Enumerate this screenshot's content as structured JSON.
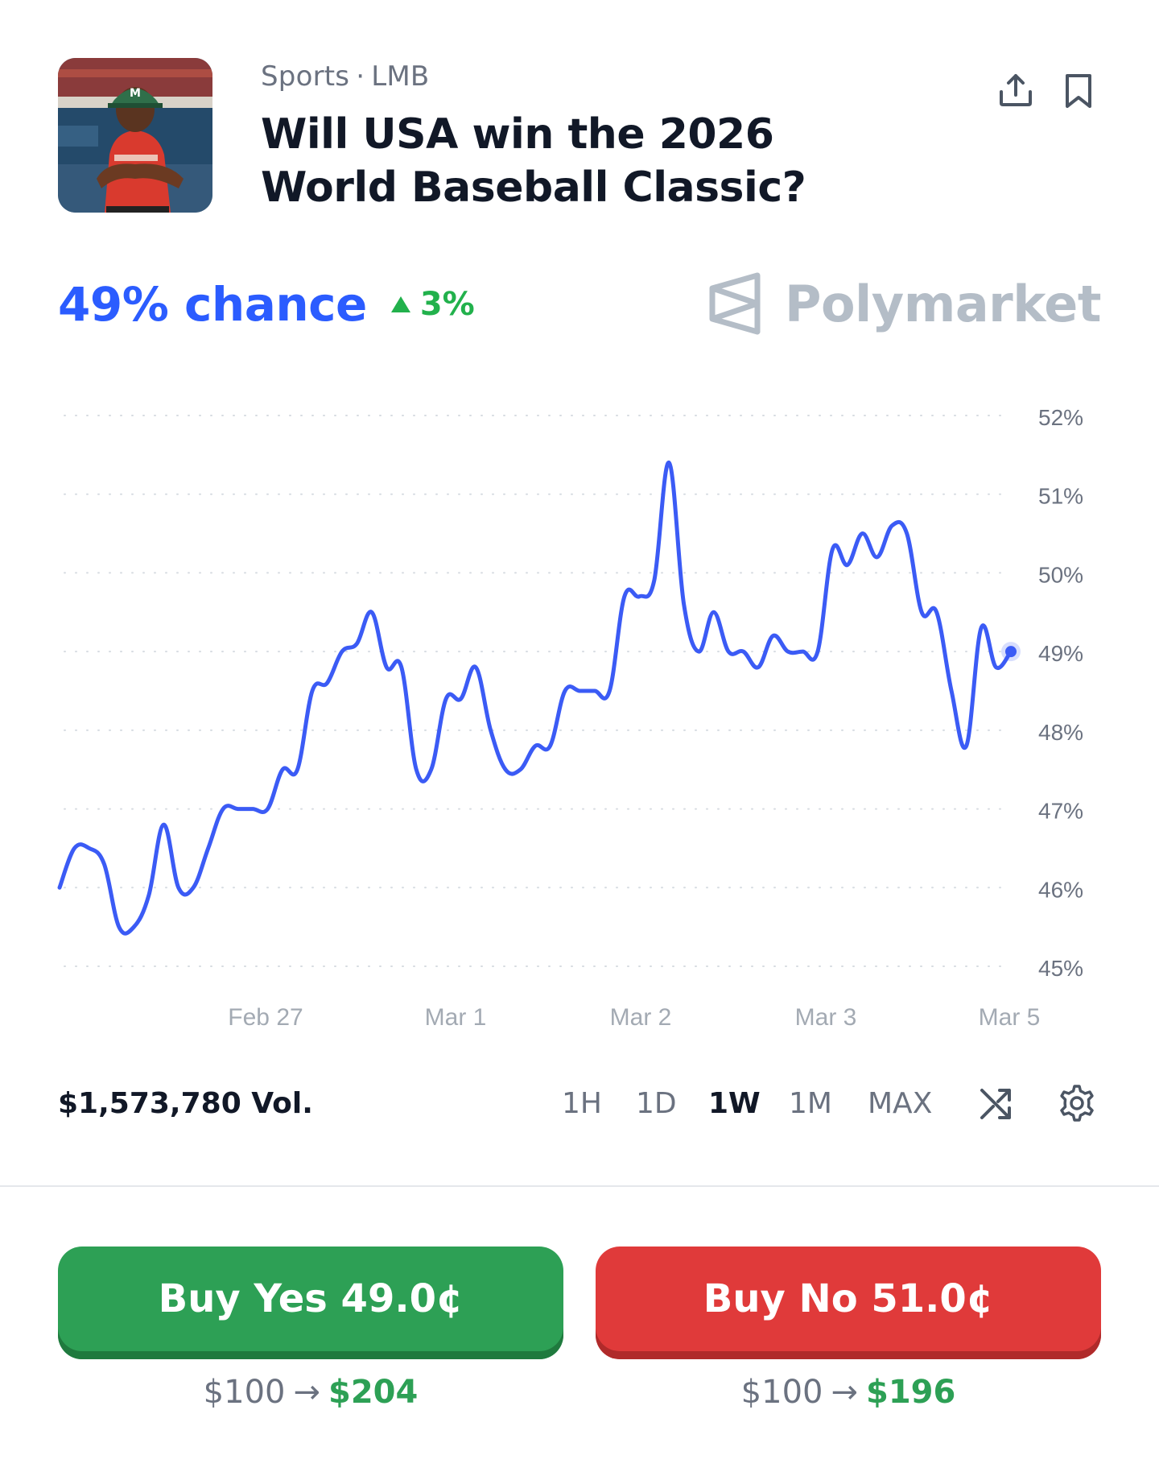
{
  "header": {
    "category": "Sports",
    "subcategory": "LMB",
    "title": "Will USA win the 2026 World Baseball Classic?",
    "thumbnail_icon": "baseball-player-photo",
    "share_icon": "share-icon",
    "bookmark_icon": "bookmark-icon"
  },
  "summary": {
    "chance": "49% chance",
    "change": "3%",
    "change_direction": "up",
    "brand": "Polymarket",
    "brand_icon": "polymarket-logo-icon"
  },
  "chart_data": {
    "type": "line",
    "title": "",
    "xlabel": "",
    "ylabel": "",
    "ylim": [
      45,
      52
    ],
    "y_ticks": [
      "52%",
      "51%",
      "50%",
      "49%",
      "48%",
      "47%",
      "46%",
      "45%"
    ],
    "x_ticks": [
      "Feb 27",
      "Mar 1",
      "Mar 2",
      "Mar 3",
      "Mar 5"
    ],
    "grid": "dotted-horizontal",
    "line_color": "#3b5bf5",
    "series": [
      {
        "values": [
          46.0,
          46.5,
          46.5,
          46.3,
          45.5,
          45.5,
          45.9,
          46.8,
          46.0,
          46.0,
          46.5,
          47.0,
          47.0,
          47.0,
          47.0,
          47.5,
          47.5,
          48.5,
          48.6,
          49.0,
          49.1,
          49.5,
          48.8,
          48.8,
          47.5,
          47.5,
          48.4,
          48.4,
          48.8,
          48.0,
          47.5,
          47.5,
          47.8,
          47.8,
          48.5,
          48.5,
          48.5,
          48.5,
          49.7,
          49.7,
          49.9,
          51.4,
          49.6,
          49.0,
          49.5,
          49.0,
          49.0,
          48.8,
          49.2,
          49.0,
          49.0,
          49.0,
          50.3,
          50.1,
          50.5,
          50.2,
          50.6,
          50.5,
          49.5,
          49.5,
          48.5,
          47.8,
          49.3,
          48.8,
          49.0
        ]
      }
    ]
  },
  "controls": {
    "volume": "$1,573,780 Vol.",
    "ranges": [
      "1H",
      "1D",
      "1W",
      "1M",
      "MAX"
    ],
    "active_range": "1W",
    "shuffle_icon": "shuffle-icon",
    "settings_icon": "gear-icon"
  },
  "actions": {
    "yes_label": "Buy Yes 49.0¢",
    "no_label": "Buy No 51.0¢",
    "yes_stake": "$100",
    "yes_payout": "$204",
    "no_stake": "$100",
    "no_payout": "$196",
    "yes_color": "#2da055",
    "no_color": "#e03a3a",
    "arrow_icon": "arrow-right-icon"
  }
}
